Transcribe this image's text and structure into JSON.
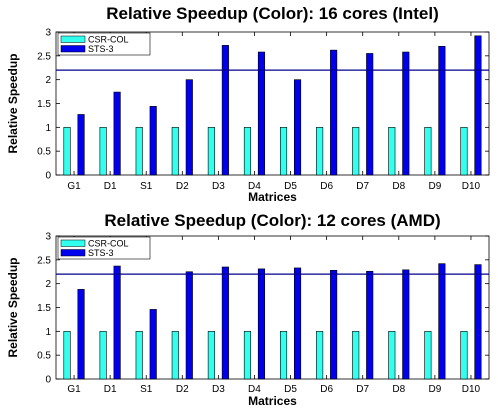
{
  "chart_data": [
    {
      "type": "bar",
      "title": "Relative Speedup (Color): 16 cores (Intel)",
      "xlabel": "Matrices",
      "ylabel": "Relative Speedup",
      "categories": [
        "G1",
        "D1",
        "S1",
        "D2",
        "D3",
        "D4",
        "D5",
        "D6",
        "D7",
        "D8",
        "D9",
        "D10"
      ],
      "ylim": [
        0,
        3
      ],
      "yticks": [
        0,
        0.5,
        1,
        1.5,
        2,
        2.5,
        3
      ],
      "ytick_labels": [
        "0",
        "0.5",
        "1",
        "1.5",
        "2",
        "2.5",
        "3"
      ],
      "reference_line": 2.2,
      "grid": false,
      "legend_position": "top-left",
      "series": [
        {
          "name": "CSR-COL",
          "color": "#33ffee",
          "values": [
            1,
            1,
            1,
            1,
            1,
            1,
            1,
            1,
            1,
            1,
            1,
            1
          ]
        },
        {
          "name": "STS-3",
          "color": "#0000ee",
          "values": [
            1.27,
            1.74,
            1.44,
            2.0,
            2.72,
            2.58,
            2.0,
            2.62,
            2.55,
            2.58,
            2.7,
            2.92
          ]
        }
      ]
    },
    {
      "type": "bar",
      "title": "Relative Speedup (Color): 12 cores (AMD)",
      "xlabel": "Matrices",
      "ylabel": "Relative Speedup",
      "categories": [
        "G1",
        "D1",
        "S1",
        "D2",
        "D3",
        "D4",
        "D5",
        "D6",
        "D7",
        "D8",
        "D9",
        "D10"
      ],
      "ylim": [
        0,
        3
      ],
      "yticks": [
        0,
        0.5,
        1,
        1.5,
        2,
        2.5,
        3
      ],
      "ytick_labels": [
        "0",
        "0.5",
        "1",
        "1.5",
        "2",
        "2.5",
        "3"
      ],
      "reference_line": 2.2,
      "grid": false,
      "legend_position": "top-left",
      "series": [
        {
          "name": "CSR-COL",
          "color": "#33ffee",
          "values": [
            1,
            1,
            1,
            1,
            1,
            1,
            1,
            1,
            1,
            1,
            1,
            1
          ]
        },
        {
          "name": "STS-3",
          "color": "#0000ee",
          "values": [
            1.88,
            2.37,
            1.46,
            2.25,
            2.35,
            2.31,
            2.33,
            2.28,
            2.26,
            2.29,
            2.42,
            2.4
          ]
        }
      ]
    }
  ],
  "colors": {
    "reference_line": "#00008b",
    "bar_outline": "#000000",
    "axis": "#000000"
  }
}
